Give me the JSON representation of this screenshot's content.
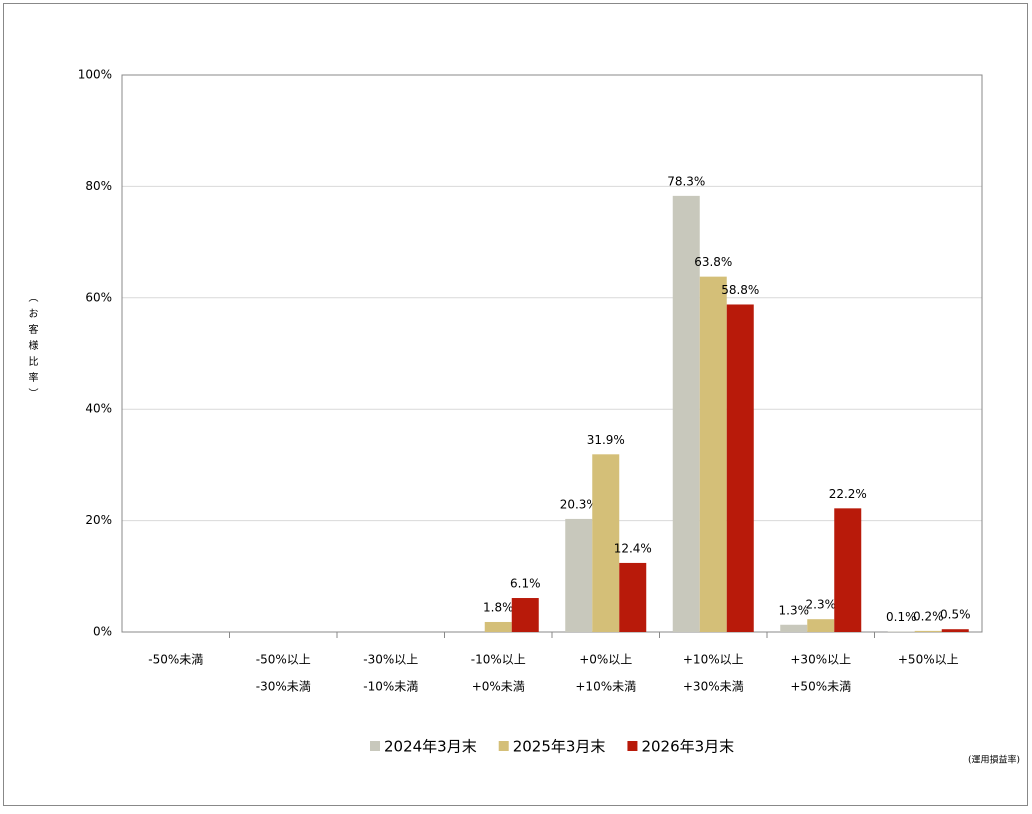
{
  "chart_data": {
    "type": "bar",
    "y_label": "（お客様比率）",
    "note": "(運用損益率)",
    "categories": [
      [
        "-50%未満"
      ],
      [
        "-50%以上",
        "-30%未満"
      ],
      [
        "-30%以上",
        "-10%未満"
      ],
      [
        "-10%以上",
        "+0%未満"
      ],
      [
        "+0%以上",
        "+10%未満"
      ],
      [
        "+10%以上",
        "+30%未満"
      ],
      [
        "+30%以上",
        "+50%未満"
      ],
      [
        "+50%以上"
      ]
    ],
    "series": [
      {
        "name": "2024年3月末",
        "color": "#c8c8bc",
        "values": [
          0,
          0,
          0,
          0,
          20.3,
          78.3,
          1.3,
          0.1
        ],
        "value_labels": [
          null,
          null,
          null,
          null,
          "20.3%",
          "78.3%",
          "1.3%",
          "0.1%"
        ]
      },
      {
        "name": "2025年3月末",
        "color": "#d4bf78",
        "values": [
          0,
          0,
          0,
          1.8,
          31.9,
          63.8,
          2.3,
          0.2
        ],
        "value_labels": [
          null,
          null,
          null,
          "1.8%",
          "31.9%",
          "63.8%",
          "2.3%",
          "0.2%"
        ]
      },
      {
        "name": "2026年3月末",
        "color": "#b81a0a",
        "values": [
          0,
          0,
          0,
          6.1,
          12.4,
          58.8,
          22.2,
          0.5
        ],
        "value_labels": [
          null,
          null,
          null,
          "6.1%",
          "12.4%",
          "58.8%",
          "22.2%",
          "0.5%"
        ]
      }
    ],
    "ylim": [
      0,
      100
    ],
    "yticks": [
      {
        "value": 0,
        "label": "0%"
      },
      {
        "value": 20,
        "label": "20%"
      },
      {
        "value": 40,
        "label": "40%"
      },
      {
        "value": 60,
        "label": "60%"
      },
      {
        "value": 80,
        "label": "80%"
      },
      {
        "value": 100,
        "label": "100%"
      }
    ],
    "grid": true,
    "legend": "bottom"
  }
}
